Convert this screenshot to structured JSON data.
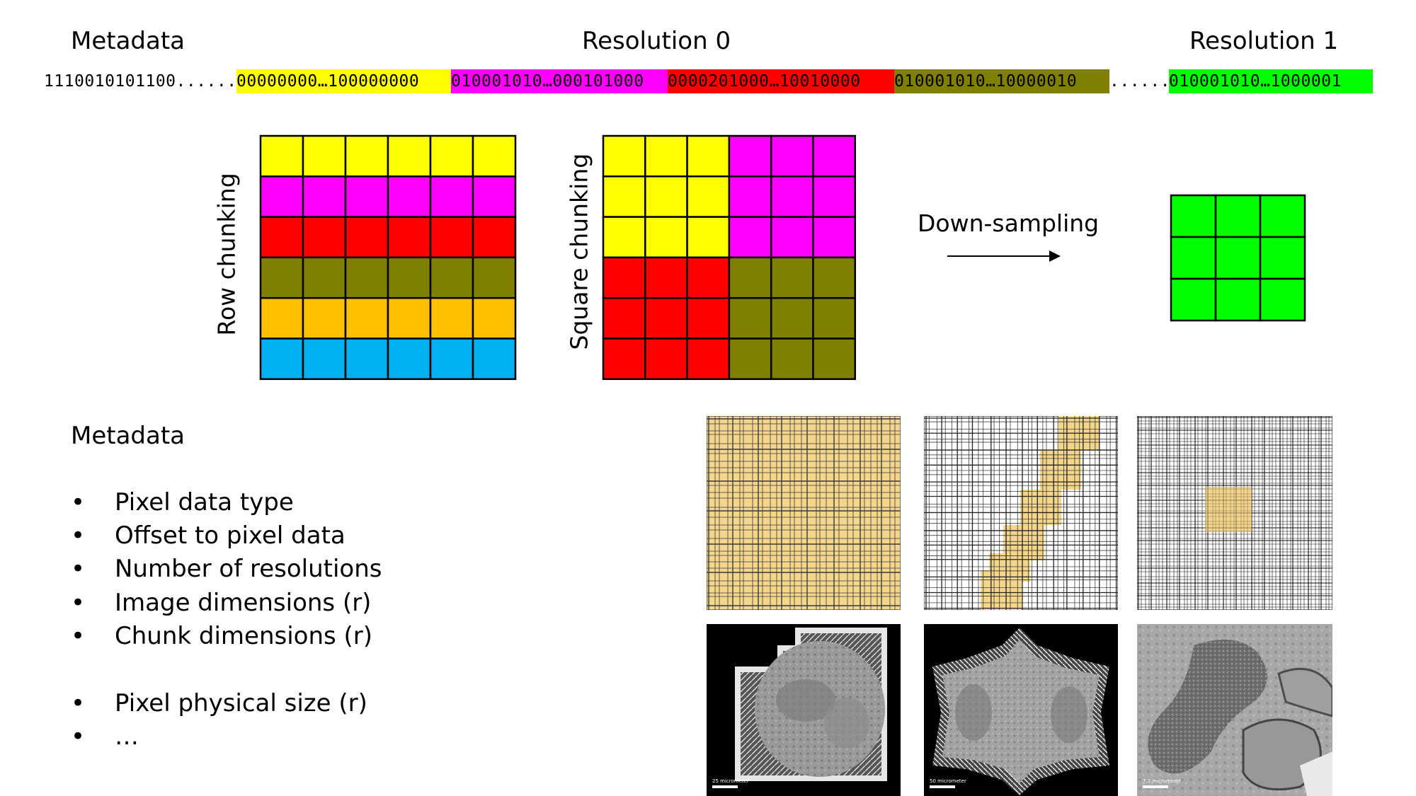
{
  "headers": {
    "metadata": "Metadata",
    "resolution0": "Resolution 0",
    "resolution1": "Resolution 1"
  },
  "bitstream": {
    "segments": [
      {
        "text": "1110010101100.........",
        "color": "#ffffff"
      },
      {
        "text": "00000000…100000000",
        "color": "#ffff00"
      },
      {
        "text": "010001010…000101000",
        "color": "#ff00ff"
      },
      {
        "text": "0000201000…10010000",
        "color": "#ff0000"
      },
      {
        "text": "010001010…10000010",
        "color": "#808000"
      },
      {
        "text": "...............",
        "color": "#ffffff"
      },
      {
        "text": "010001010…1000001",
        "color": "#00ff00"
      }
    ]
  },
  "diagrams": {
    "row_chunking_label": "Row chunking",
    "square_chunking_label": "Square chunking",
    "downsampling_label": "Down-sampling",
    "row_chunk_colors": [
      "#ffff00",
      "#ff00ff",
      "#ff0000",
      "#808000",
      "#ffc000",
      "#00b0f0"
    ],
    "square_chunk_colors": {
      "top_left": "#ffff00",
      "top_right": "#ff00ff",
      "bottom_left": "#ff0000",
      "bottom_right": "#808000"
    },
    "resolution1_color": "#00ff00"
  },
  "metadata_list": {
    "title": "Metadata",
    "bullet": "•",
    "items": [
      "Pixel data type",
      "Offset to pixel data",
      "Number of resolutions",
      "Image dimensions (r)",
      "Chunk dimensions (r)",
      "Pixel physical size (r)",
      "…"
    ]
  },
  "panels": {
    "highlight_color": "#f3d58c",
    "scalebars": [
      "25 micrometer",
      "50 micrometer",
      "7.5 micrometer"
    ]
  }
}
